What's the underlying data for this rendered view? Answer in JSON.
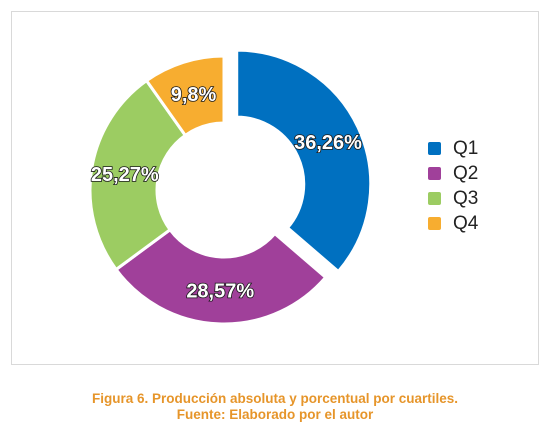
{
  "chart_data": {
    "type": "pie",
    "subtype": "donut",
    "categories": [
      "Q1",
      "Q2",
      "Q3",
      "Q4"
    ],
    "values": [
      36.26,
      28.57,
      25.27,
      9.8
    ],
    "data_labels": [
      "36,26%",
      "28,57%",
      "25,27%",
      "9,8%"
    ],
    "colors": [
      "#0070c0",
      "#a0409a",
      "#9ccc62",
      "#f7ad30"
    ],
    "exploded": [
      "Q1"
    ],
    "legend_position": "right"
  },
  "legend": {
    "items": [
      {
        "label": "Q1",
        "color": "#0070c0"
      },
      {
        "label": "Q2",
        "color": "#a0409a"
      },
      {
        "label": "Q3",
        "color": "#9ccc62"
      },
      {
        "label": "Q4",
        "color": "#f7ad30"
      }
    ]
  },
  "caption": {
    "line1": "Figura 6. Producción absoluta y porcentual por cuartiles.",
    "line2": "Fuente: Elaborado por el autor"
  }
}
